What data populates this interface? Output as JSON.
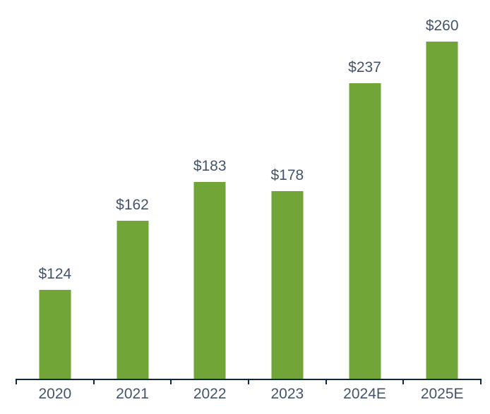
{
  "chart_data": {
    "type": "bar",
    "title": "",
    "xlabel": "",
    "ylabel": "",
    "categories": [
      "2020",
      "2021",
      "2022",
      "2023",
      "2024E",
      "2025E"
    ],
    "values": [
      124,
      162,
      183,
      178,
      237,
      260
    ],
    "value_labels": [
      "$124",
      "$162",
      "$183",
      "$178",
      "$237",
      "$260"
    ],
    "ylim": [
      75,
      270
    ],
    "grid": false,
    "legend": "none",
    "y_axis_visible": false,
    "data_labels_position": "above-bar",
    "colors": {
      "bar_fill": "#71A537",
      "label_text": "#44546A",
      "axis_line": "#0E2841",
      "background": "#FFFFFF"
    }
  }
}
